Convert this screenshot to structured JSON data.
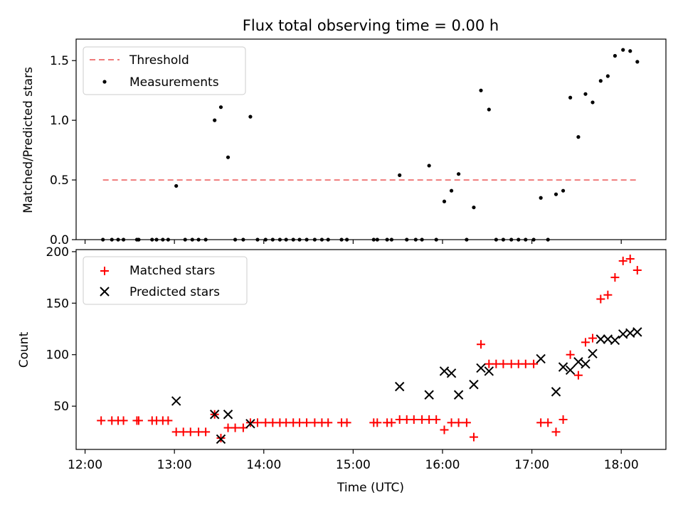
{
  "chart_data": [
    {
      "type": "scatter",
      "title": "Flux total observing time = 0.00 h",
      "xlabel": "",
      "ylabel": "Matched/Predicted stars",
      "xlim": [
        11.9,
        18.5
      ],
      "ylim": [
        0,
        1.68
      ],
      "yticks": [
        {
          "v": 0.0,
          "label": "0.0"
        },
        {
          "v": 0.5,
          "label": "0.5"
        },
        {
          "v": 1.0,
          "label": "1.0"
        },
        {
          "v": 1.5,
          "label": "1.5"
        }
      ],
      "xticks": [
        12,
        13,
        14,
        15,
        16,
        17,
        18
      ],
      "legend": {
        "position": "top-left",
        "entries": [
          {
            "label": "Threshold",
            "style": "dashed-line",
            "color": "#f07b7b"
          },
          {
            "label": "Measurements",
            "style": "dot",
            "color": "#000000"
          }
        ]
      },
      "threshold": {
        "y": 0.5,
        "x": [
          12.2,
          18.2
        ],
        "color": "#f07b7b"
      },
      "series": [
        {
          "name": "Measurements",
          "color": "#000000",
          "points": [
            [
              12.2,
              0
            ],
            [
              12.3,
              0
            ],
            [
              12.37,
              0
            ],
            [
              12.43,
              0
            ],
            [
              12.58,
              0
            ],
            [
              12.6,
              0
            ],
            [
              12.75,
              0
            ],
            [
              12.8,
              0
            ],
            [
              12.87,
              0
            ],
            [
              12.93,
              0
            ],
            [
              13.02,
              0.45
            ],
            [
              13.12,
              0
            ],
            [
              13.2,
              0
            ],
            [
              13.27,
              0
            ],
            [
              13.35,
              0
            ],
            [
              13.45,
              1.0
            ],
            [
              13.52,
              1.11
            ],
            [
              13.6,
              0.69
            ],
            [
              13.68,
              0
            ],
            [
              13.77,
              0
            ],
            [
              13.85,
              1.03
            ],
            [
              13.93,
              0
            ],
            [
              14.02,
              0
            ],
            [
              14.1,
              0
            ],
            [
              14.18,
              0
            ],
            [
              14.25,
              0
            ],
            [
              14.33,
              0
            ],
            [
              14.4,
              0
            ],
            [
              14.48,
              0
            ],
            [
              14.57,
              0
            ],
            [
              14.65,
              0
            ],
            [
              14.72,
              0
            ],
            [
              14.87,
              0
            ],
            [
              14.93,
              0
            ],
            [
              15.23,
              0
            ],
            [
              15.27,
              0
            ],
            [
              15.38,
              0
            ],
            [
              15.43,
              0
            ],
            [
              15.52,
              0.54
            ],
            [
              15.6,
              0
            ],
            [
              15.7,
              0
            ],
            [
              15.77,
              0
            ],
            [
              15.85,
              0.62
            ],
            [
              15.93,
              0
            ],
            [
              16.02,
              0.32
            ],
            [
              16.1,
              0.41
            ],
            [
              16.18,
              0.55
            ],
            [
              16.27,
              0
            ],
            [
              16.35,
              0.27
            ],
            [
              16.43,
              1.25
            ],
            [
              16.52,
              1.09
            ],
            [
              16.6,
              0
            ],
            [
              16.68,
              0
            ],
            [
              16.77,
              0
            ],
            [
              16.85,
              0
            ],
            [
              16.93,
              0
            ],
            [
              17.02,
              0
            ],
            [
              17.1,
              0.35
            ],
            [
              17.18,
              0
            ],
            [
              17.27,
              0.38
            ],
            [
              17.35,
              0.41
            ],
            [
              17.43,
              1.19
            ],
            [
              17.52,
              0.86
            ],
            [
              17.6,
              1.22
            ],
            [
              17.68,
              1.15
            ],
            [
              17.77,
              1.33
            ],
            [
              17.85,
              1.37
            ],
            [
              17.93,
              1.54
            ],
            [
              18.02,
              1.59
            ],
            [
              18.1,
              1.58
            ],
            [
              18.18,
              1.49
            ]
          ]
        }
      ]
    },
    {
      "type": "scatter",
      "title": "",
      "xlabel": "Time (UTC)",
      "ylabel": "Count",
      "xlim": [
        11.9,
        18.5
      ],
      "ylim": [
        8,
        202
      ],
      "yticks": [
        {
          "v": 50,
          "label": "50"
        },
        {
          "v": 100,
          "label": "100"
        },
        {
          "v": 150,
          "label": "150"
        },
        {
          "v": 200,
          "label": "200"
        }
      ],
      "xticks": [
        {
          "v": 12,
          "label": "12:00"
        },
        {
          "v": 13,
          "label": "13:00"
        },
        {
          "v": 14,
          "label": "14:00"
        },
        {
          "v": 15,
          "label": "15:00"
        },
        {
          "v": 16,
          "label": "16:00"
        },
        {
          "v": 17,
          "label": "17:00"
        },
        {
          "v": 18,
          "label": "18:00"
        }
      ],
      "legend": {
        "position": "top-left",
        "entries": [
          {
            "label": "Matched stars",
            "style": "plus",
            "color": "#ff0000"
          },
          {
            "label": "Predicted stars",
            "style": "x",
            "color": "#000000"
          }
        ]
      },
      "series": [
        {
          "name": "Matched stars",
          "marker": "plus",
          "color": "#ff0000",
          "points": [
            [
              12.18,
              36
            ],
            [
              12.3,
              36
            ],
            [
              12.37,
              36
            ],
            [
              12.43,
              36
            ],
            [
              12.58,
              36
            ],
            [
              12.6,
              36
            ],
            [
              12.75,
              36
            ],
            [
              12.8,
              36
            ],
            [
              12.87,
              36
            ],
            [
              12.93,
              36
            ],
            [
              13.02,
              25
            ],
            [
              13.1,
              25
            ],
            [
              13.18,
              25
            ],
            [
              13.27,
              25
            ],
            [
              13.35,
              25
            ],
            [
              13.45,
              42
            ],
            [
              13.52,
              19
            ],
            [
              13.6,
              29
            ],
            [
              13.68,
              29
            ],
            [
              13.77,
              29
            ],
            [
              13.85,
              34
            ],
            [
              13.93,
              34
            ],
            [
              14.02,
              34
            ],
            [
              14.1,
              34
            ],
            [
              14.18,
              34
            ],
            [
              14.25,
              34
            ],
            [
              14.33,
              34
            ],
            [
              14.4,
              34
            ],
            [
              14.48,
              34
            ],
            [
              14.57,
              34
            ],
            [
              14.65,
              34
            ],
            [
              14.72,
              34
            ],
            [
              14.87,
              34
            ],
            [
              14.93,
              34
            ],
            [
              15.23,
              34
            ],
            [
              15.27,
              34
            ],
            [
              15.38,
              34
            ],
            [
              15.43,
              34
            ],
            [
              15.52,
              37
            ],
            [
              15.6,
              37
            ],
            [
              15.68,
              37
            ],
            [
              15.77,
              37
            ],
            [
              15.85,
              37
            ],
            [
              15.93,
              37
            ],
            [
              16.02,
              27
            ],
            [
              16.1,
              34
            ],
            [
              16.18,
              34
            ],
            [
              16.27,
              34
            ],
            [
              16.35,
              20
            ],
            [
              16.43,
              110
            ],
            [
              16.52,
              91
            ],
            [
              16.6,
              91
            ],
            [
              16.68,
              91
            ],
            [
              16.77,
              91
            ],
            [
              16.85,
              91
            ],
            [
              16.93,
              91
            ],
            [
              17.02,
              91
            ],
            [
              17.1,
              34
            ],
            [
              17.18,
              34
            ],
            [
              17.27,
              25
            ],
            [
              17.35,
              37
            ],
            [
              17.43,
              100
            ],
            [
              17.52,
              80
            ],
            [
              17.6,
              112
            ],
            [
              17.68,
              116
            ],
            [
              17.77,
              154
            ],
            [
              17.85,
              158
            ],
            [
              17.93,
              175
            ],
            [
              18.02,
              191
            ],
            [
              18.1,
              193
            ],
            [
              18.18,
              182
            ]
          ]
        },
        {
          "name": "Predicted stars",
          "marker": "x",
          "color": "#000000",
          "points": [
            [
              13.02,
              55
            ],
            [
              13.45,
              42
            ],
            [
              13.52,
              18
            ],
            [
              13.6,
              42
            ],
            [
              13.85,
              33
            ],
            [
              15.52,
              69
            ],
            [
              15.85,
              61
            ],
            [
              16.02,
              84
            ],
            [
              16.1,
              82
            ],
            [
              16.18,
              61
            ],
            [
              16.35,
              71
            ],
            [
              16.43,
              87
            ],
            [
              16.52,
              84
            ],
            [
              17.1,
              96
            ],
            [
              17.27,
              64
            ],
            [
              17.35,
              88
            ],
            [
              17.43,
              85
            ],
            [
              17.52,
              93
            ],
            [
              17.6,
              91
            ],
            [
              17.68,
              101
            ],
            [
              17.77,
              115
            ],
            [
              17.85,
              115
            ],
            [
              17.93,
              114
            ],
            [
              18.02,
              120
            ],
            [
              18.1,
              121
            ],
            [
              18.18,
              122
            ]
          ]
        }
      ]
    }
  ]
}
